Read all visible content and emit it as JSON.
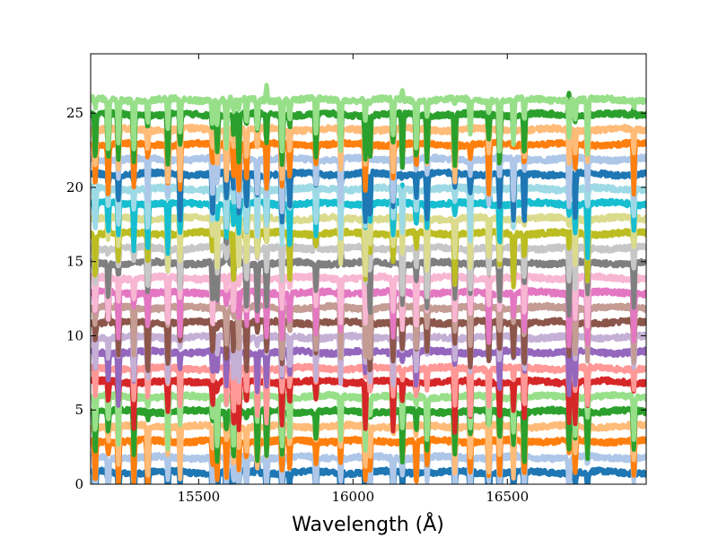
{
  "chart_data": {
    "type": "line",
    "title": "",
    "xlabel": "Wavelength (Å)",
    "ylabel": "",
    "xlim": [
      15150,
      16950
    ],
    "ylim": [
      0,
      29
    ],
    "x_ticks": [
      15500,
      16000,
      16500
    ],
    "y_ticks": [
      0,
      5,
      10,
      15,
      20,
      25
    ],
    "x_tick_labels": [
      "15500",
      "16000",
      "16500"
    ],
    "y_tick_labels": [
      "0",
      "5",
      "10",
      "15",
      "20",
      "25"
    ],
    "grid": false,
    "legend": "none",
    "absorption_lines": [
      15165,
      15207,
      15240,
      15290,
      15335,
      15400,
      15440,
      15545,
      15560,
      15590,
      15613,
      15630,
      15655,
      15690,
      15720,
      15770,
      15795,
      15880,
      15960,
      16040,
      16055,
      16130,
      16160,
      16205,
      16240,
      16330,
      16380,
      16440,
      16475,
      16520,
      16555,
      16700,
      16720,
      16760,
      16910
    ],
    "series": [
      {
        "offset": 0.8,
        "color": "#1f77b4"
      },
      {
        "offset": 1.8,
        "color": "#aec7e8"
      },
      {
        "offset": 2.9,
        "color": "#ff7f0e"
      },
      {
        "offset": 3.9,
        "color": "#ffbb78"
      },
      {
        "offset": 4.9,
        "color": "#2ca02c"
      },
      {
        "offset": 5.9,
        "color": "#98df8a"
      },
      {
        "offset": 6.9,
        "color": "#d62728"
      },
      {
        "offset": 7.8,
        "color": "#ff9896"
      },
      {
        "offset": 8.9,
        "color": "#9467bd"
      },
      {
        "offset": 9.9,
        "color": "#c5b0d5"
      },
      {
        "offset": 10.9,
        "color": "#8c564b"
      },
      {
        "offset": 11.9,
        "color": "#c49c94"
      },
      {
        "offset": 12.9,
        "color": "#e377c2"
      },
      {
        "offset": 13.9,
        "color": "#f7b6d2"
      },
      {
        "offset": 14.9,
        "color": "#7f7f7f"
      },
      {
        "offset": 15.9,
        "color": "#c7c7c7"
      },
      {
        "offset": 16.9,
        "color": "#bcbd22"
      },
      {
        "offset": 17.9,
        "color": "#dbdb8d"
      },
      {
        "offset": 18.9,
        "color": "#17becf"
      },
      {
        "offset": 19.9,
        "color": "#9edae5"
      },
      {
        "offset": 20.9,
        "color": "#1f77b4"
      },
      {
        "offset": 21.9,
        "color": "#aec7e8"
      },
      {
        "offset": 22.9,
        "color": "#ff7f0e"
      },
      {
        "offset": 23.9,
        "color": "#ffbb78"
      },
      {
        "offset": 24.9,
        "color": "#2ca02c"
      },
      {
        "offset": 25.9,
        "color": "#98df8a"
      }
    ]
  }
}
